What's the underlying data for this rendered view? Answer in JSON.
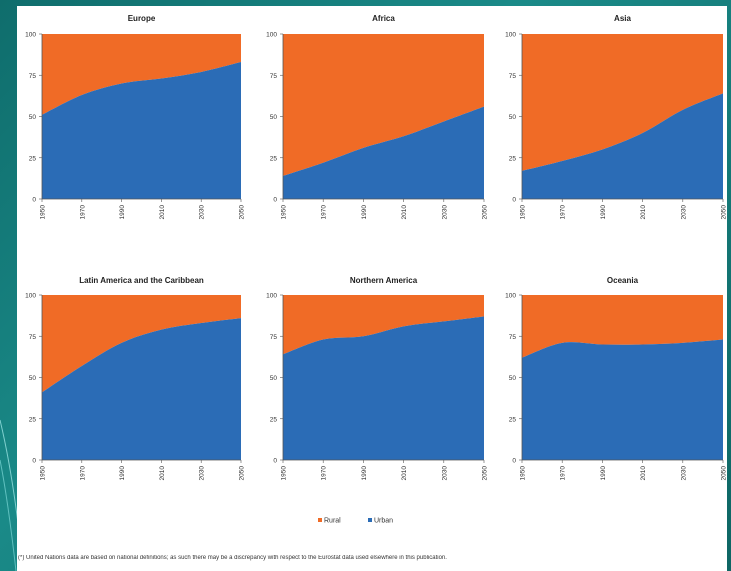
{
  "chart_data": [
    {
      "type": "area",
      "title": "Europe",
      "x": [
        "1950",
        "1970",
        "1990",
        "2010",
        "2030",
        "2050"
      ],
      "ylim": [
        0,
        100
      ],
      "yticks": [
        0,
        25,
        50,
        75,
        100
      ],
      "series": [
        {
          "name": "Urban",
          "values": [
            51,
            63,
            70,
            73,
            77,
            83
          ]
        },
        {
          "name": "Rural",
          "values": [
            49,
            37,
            30,
            27,
            23,
            17
          ]
        }
      ]
    },
    {
      "type": "area",
      "title": "Africa",
      "x": [
        "1950",
        "1970",
        "1990",
        "2010",
        "2030",
        "2050"
      ],
      "ylim": [
        0,
        100
      ],
      "yticks": [
        0,
        25,
        50,
        75,
        100
      ],
      "series": [
        {
          "name": "Urban",
          "values": [
            14,
            22,
            31,
            38,
            47,
            56
          ]
        },
        {
          "name": "Rural",
          "values": [
            86,
            78,
            69,
            62,
            53,
            44
          ]
        }
      ]
    },
    {
      "type": "area",
      "title": "Asia",
      "x": [
        "1950",
        "1970",
        "1990",
        "2010",
        "2030",
        "2050"
      ],
      "ylim": [
        0,
        100
      ],
      "yticks": [
        0,
        25,
        50,
        75,
        100
      ],
      "series": [
        {
          "name": "Urban",
          "values": [
            17,
            23,
            30,
            40,
            54,
            64
          ]
        },
        {
          "name": "Rural",
          "values": [
            83,
            77,
            70,
            60,
            46,
            36
          ]
        }
      ]
    },
    {
      "type": "area",
      "title": "Latin America and the Caribbean",
      "x": [
        "1950",
        "1970",
        "1990",
        "2010",
        "2030",
        "2050"
      ],
      "ylim": [
        0,
        100
      ],
      "yticks": [
        0,
        25,
        50,
        75,
        100
      ],
      "series": [
        {
          "name": "Urban",
          "values": [
            41,
            57,
            71,
            79,
            83,
            86
          ]
        },
        {
          "name": "Rural",
          "values": [
            59,
            43,
            29,
            21,
            17,
            14
          ]
        }
      ]
    },
    {
      "type": "area",
      "title": "Northern America",
      "x": [
        "1950",
        "1970",
        "1990",
        "2010",
        "2030",
        "2050"
      ],
      "ylim": [
        0,
        100
      ],
      "yticks": [
        0,
        25,
        50,
        75,
        100
      ],
      "series": [
        {
          "name": "Urban",
          "values": [
            64,
            73,
            75,
            81,
            84,
            87
          ]
        },
        {
          "name": "Rural",
          "values": [
            36,
            27,
            25,
            19,
            16,
            13
          ]
        }
      ]
    },
    {
      "type": "area",
      "title": "Oceania",
      "x": [
        "1950",
        "1970",
        "1990",
        "2010",
        "2030",
        "2050"
      ],
      "ylim": [
        0,
        100
      ],
      "yticks": [
        0,
        25,
        50,
        75,
        100
      ],
      "series": [
        {
          "name": "Urban",
          "values": [
            62,
            71,
            70,
            70,
            71,
            73
          ]
        },
        {
          "name": "Rural",
          "values": [
            38,
            29,
            30,
            30,
            29,
            27
          ]
        }
      ]
    }
  ],
  "legend": [
    {
      "name": "Rural",
      "color": "#f06b26"
    },
    {
      "name": "Urban",
      "color": "#2b6cb6"
    }
  ],
  "colors": {
    "urban": "#2b6cb6",
    "rural": "#f06b26"
  },
  "footnote": "(*) United Nations data are based on national definitions; as such there may be a discrepancy with respect to the Eurostat data used elsewhere in this publication."
}
